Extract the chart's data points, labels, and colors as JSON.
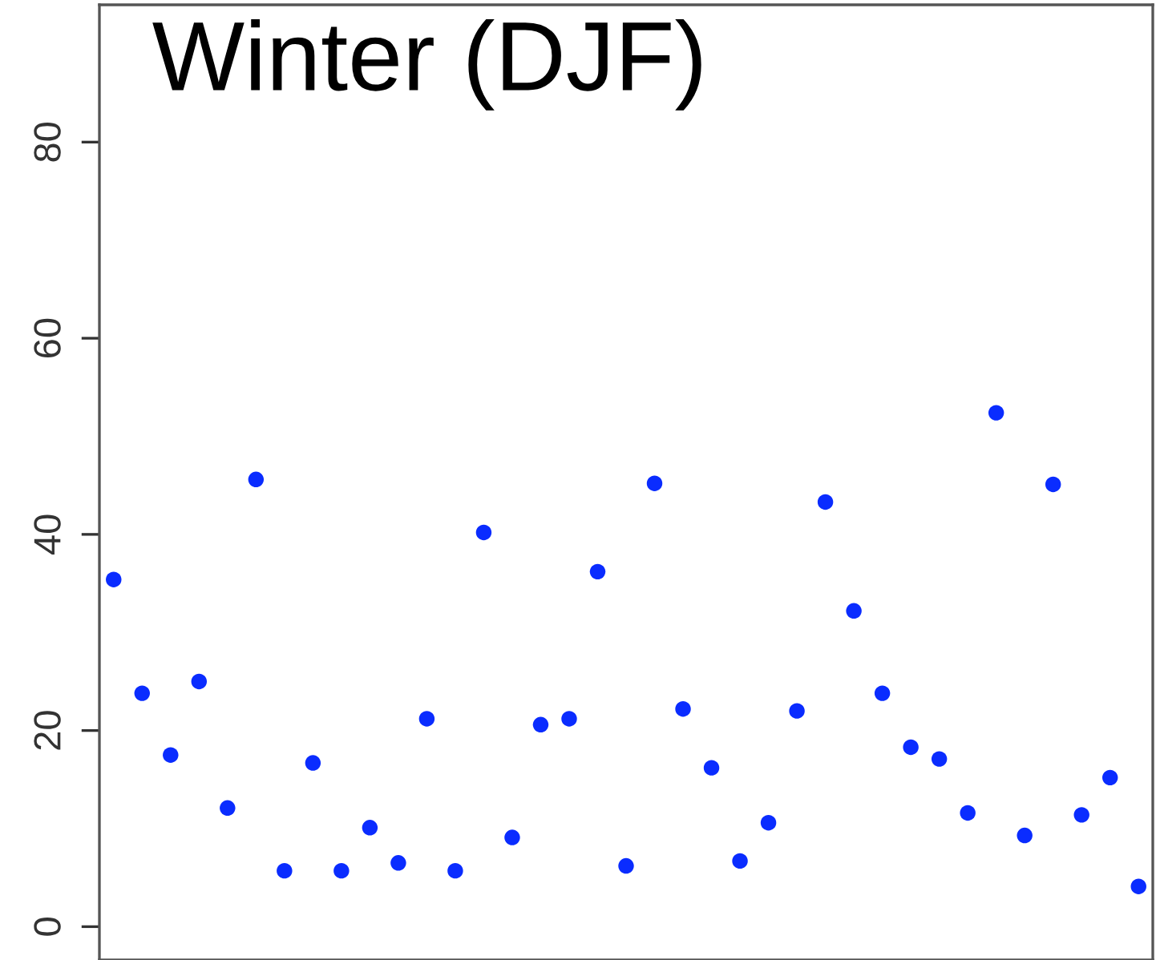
{
  "chart_data": {
    "type": "scatter",
    "title": "Winter (DJF)",
    "categories": [
      null,
      null,
      null,
      null,
      null,
      null,
      null,
      null,
      null,
      null,
      null,
      null,
      null,
      null,
      null,
      null,
      null,
      null,
      null,
      null,
      null,
      null,
      null,
      null,
      null,
      null,
      null,
      null,
      null,
      null,
      null,
      null,
      null,
      null,
      null,
      null,
      null
    ],
    "values": [
      35.4,
      23.8,
      17.5,
      25.0,
      12.1,
      45.6,
      5.7,
      16.7,
      5.7,
      10.1,
      6.5,
      21.2,
      5.7,
      40.2,
      9.1,
      20.6,
      21.2,
      36.2,
      6.2,
      45.2,
      22.2,
      16.2,
      6.7,
      10.6,
      22.0,
      43.3,
      32.2,
      23.8,
      18.3,
      17.1,
      11.6,
      52.4,
      9.3,
      45.1,
      11.4,
      15.2,
      4.1
    ],
    "color": "#0a2cff",
    "marker": "circle",
    "ylim": [
      -3.4,
      94
    ],
    "yticks": [
      0,
      20,
      40,
      60,
      80
    ],
    "tick_labels": "y",
    "grid": false,
    "legend": false
  }
}
